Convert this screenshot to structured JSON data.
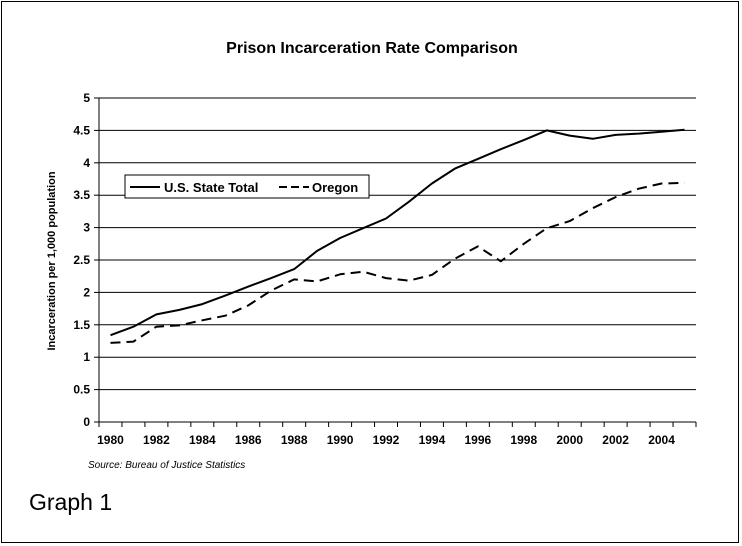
{
  "caption": "Graph 1",
  "chart_data": {
    "type": "line",
    "title": "Prison Incarceration Rate Comparison",
    "ylabel": "Incarceration per 1,000 population",
    "xlabel": "",
    "source": "Source: Bureau of Justice Statistics",
    "ylim": [
      0,
      5
    ],
    "yticks": [
      "0",
      "0.5",
      "1",
      "1.5",
      "2",
      "2.5",
      "3",
      "3.5",
      "4",
      "4.5",
      "5"
    ],
    "xlim": [
      1980,
      2005
    ],
    "xticks": [
      "1980",
      "1982",
      "1984",
      "1986",
      "1988",
      "1990",
      "1992",
      "1994",
      "1996",
      "1998",
      "2000",
      "2002",
      "2004"
    ],
    "grid": "horizontal",
    "legend_position": "left-middle",
    "x": [
      1980,
      1981,
      1982,
      1983,
      1984,
      1985,
      1986,
      1987,
      1988,
      1989,
      1990,
      1991,
      1992,
      1993,
      1994,
      1995,
      1996,
      1997,
      1998,
      1999,
      2000,
      2001,
      2002,
      2003,
      2004,
      2005
    ],
    "series": [
      {
        "name": "U.S. State Total",
        "style": "solid",
        "color": "#000000",
        "values": [
          1.34,
          1.47,
          1.66,
          1.73,
          1.82,
          1.95,
          2.09,
          2.22,
          2.36,
          2.64,
          2.84,
          2.99,
          3.14,
          3.4,
          3.68,
          3.91,
          4.06,
          4.21,
          4.35,
          4.5,
          4.42,
          4.37,
          4.43,
          4.45,
          4.48,
          4.51
        ]
      },
      {
        "name": "Oregon",
        "style": "dashed",
        "color": "#000000",
        "values": [
          1.22,
          1.24,
          1.47,
          1.49,
          1.57,
          1.64,
          1.8,
          2.03,
          2.2,
          2.17,
          2.28,
          2.32,
          2.22,
          2.18,
          2.27,
          2.52,
          2.71,
          2.48,
          2.75,
          2.99,
          3.1,
          3.3,
          3.47,
          3.6,
          3.68,
          3.69
        ]
      }
    ]
  }
}
